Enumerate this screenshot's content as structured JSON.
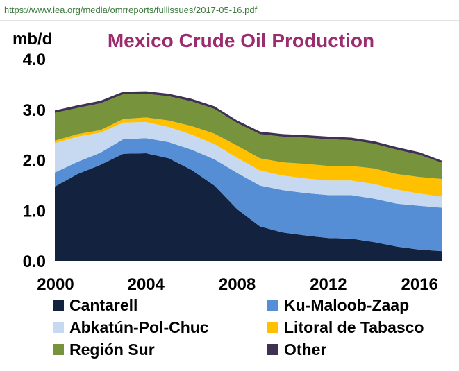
{
  "browser": {
    "url": "https://www.iea.org/media/omrreports/fullissues/2017-05-16.pdf"
  },
  "chart_data": {
    "type": "area",
    "stacked": true,
    "title": "Mexico Crude Oil Production",
    "title_color": "#9b2d6e",
    "unit_label": "mb/d",
    "ylim": [
      0,
      4.0
    ],
    "y_ticks": [
      "0.0",
      "1.0",
      "2.0",
      "3.0",
      "4.0"
    ],
    "x_ticks": [
      "2000",
      "2004",
      "2008",
      "2012",
      "2016"
    ],
    "grid": false,
    "legend_position": "bottom",
    "x": [
      2000,
      2001,
      2002,
      2003,
      2004,
      2005,
      2006,
      2007,
      2008,
      2009,
      2010,
      2011,
      2012,
      2013,
      2014,
      2015,
      2016,
      2017
    ],
    "series": [
      {
        "name": "Cantarell",
        "color": "#13223f",
        "values": [
          1.47,
          1.72,
          1.9,
          2.12,
          2.13,
          2.03,
          1.8,
          1.49,
          1.02,
          0.68,
          0.56,
          0.5,
          0.45,
          0.44,
          0.37,
          0.28,
          0.22,
          0.19
        ]
      },
      {
        "name": "Ku-Maloob-Zaap",
        "color": "#558ed5",
        "values": [
          0.28,
          0.24,
          0.24,
          0.29,
          0.3,
          0.32,
          0.4,
          0.52,
          0.72,
          0.81,
          0.84,
          0.84,
          0.85,
          0.86,
          0.86,
          0.85,
          0.87,
          0.86
        ]
      },
      {
        "name": "Abkatún-Pol-Chuc",
        "color": "#c6d9f1",
        "values": [
          0.58,
          0.5,
          0.4,
          0.33,
          0.32,
          0.3,
          0.3,
          0.3,
          0.3,
          0.3,
          0.29,
          0.29,
          0.29,
          0.29,
          0.29,
          0.28,
          0.24,
          0.22
        ]
      },
      {
        "name": "Litoral de Tabasco",
        "color": "#ffc000",
        "values": [
          0.05,
          0.05,
          0.05,
          0.07,
          0.09,
          0.13,
          0.17,
          0.21,
          0.24,
          0.24,
          0.26,
          0.29,
          0.29,
          0.29,
          0.31,
          0.31,
          0.33,
          0.35
        ]
      },
      {
        "name": "Región Sur",
        "color": "#77933c",
        "values": [
          0.55,
          0.52,
          0.53,
          0.49,
          0.47,
          0.48,
          0.49,
          0.49,
          0.45,
          0.48,
          0.51,
          0.52,
          0.53,
          0.51,
          0.49,
          0.48,
          0.44,
          0.32
        ]
      },
      {
        "name": "Other",
        "color": "#3f3151",
        "values": [
          0.05,
          0.05,
          0.05,
          0.05,
          0.05,
          0.05,
          0.05,
          0.05,
          0.05,
          0.05,
          0.05,
          0.05,
          0.05,
          0.05,
          0.05,
          0.05,
          0.05,
          0.04
        ]
      }
    ]
  }
}
